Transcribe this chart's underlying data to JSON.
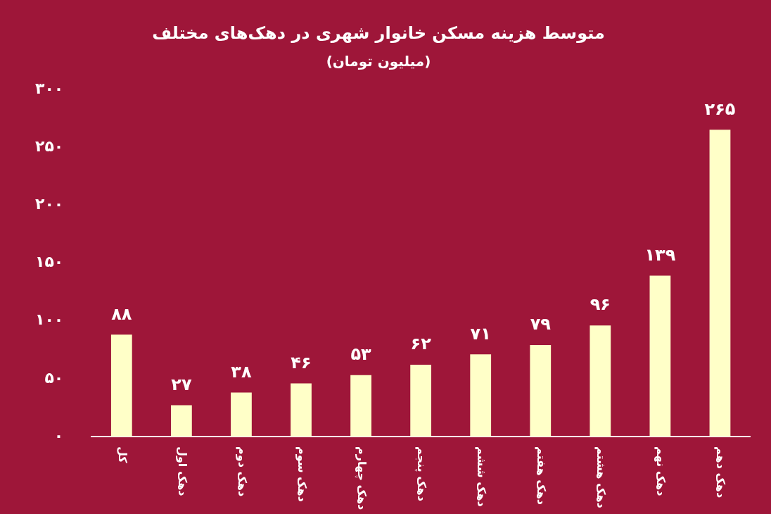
{
  "chart_data": {
    "type": "bar",
    "title": "متوسط هزینه مسکن خانوار شهری در دهک‌های مختلف",
    "subtitle": "(میلیون تومان)",
    "categories": [
      "کل",
      "دهک اول",
      "دهک دوم",
      "دهک سوم",
      "دهک چهارم",
      "دهک پنجم",
      "دهک ششم",
      "دهک هفتم",
      "دهک هشتم",
      "دهک نهم",
      "دهک دهم"
    ],
    "values": [
      88,
      27,
      38,
      46,
      53,
      62,
      71,
      79,
      96,
      139,
      265
    ],
    "value_labels": [
      "۸۸",
      "۲۷",
      "۳۸",
      "۴۶",
      "۵۳",
      "۶۲",
      "۷۱",
      "۷۹",
      "۹۶",
      "۱۳۹",
      "۲۶۵"
    ],
    "color": "#ffffc8",
    "ylim": [
      0,
      300
    ],
    "yticks": [
      {
        "value": 0,
        "label": "۰"
      },
      {
        "value": 50,
        "label": "۵۰"
      },
      {
        "value": 100,
        "label": "۱۰۰"
      },
      {
        "value": 150,
        "label": "۱۵۰"
      },
      {
        "value": 200,
        "label": "۲۰۰"
      },
      {
        "value": 250,
        "label": "۲۵۰"
      },
      {
        "value": 300,
        "label": "۳۰۰"
      }
    ],
    "grid": false,
    "legend": false
  }
}
